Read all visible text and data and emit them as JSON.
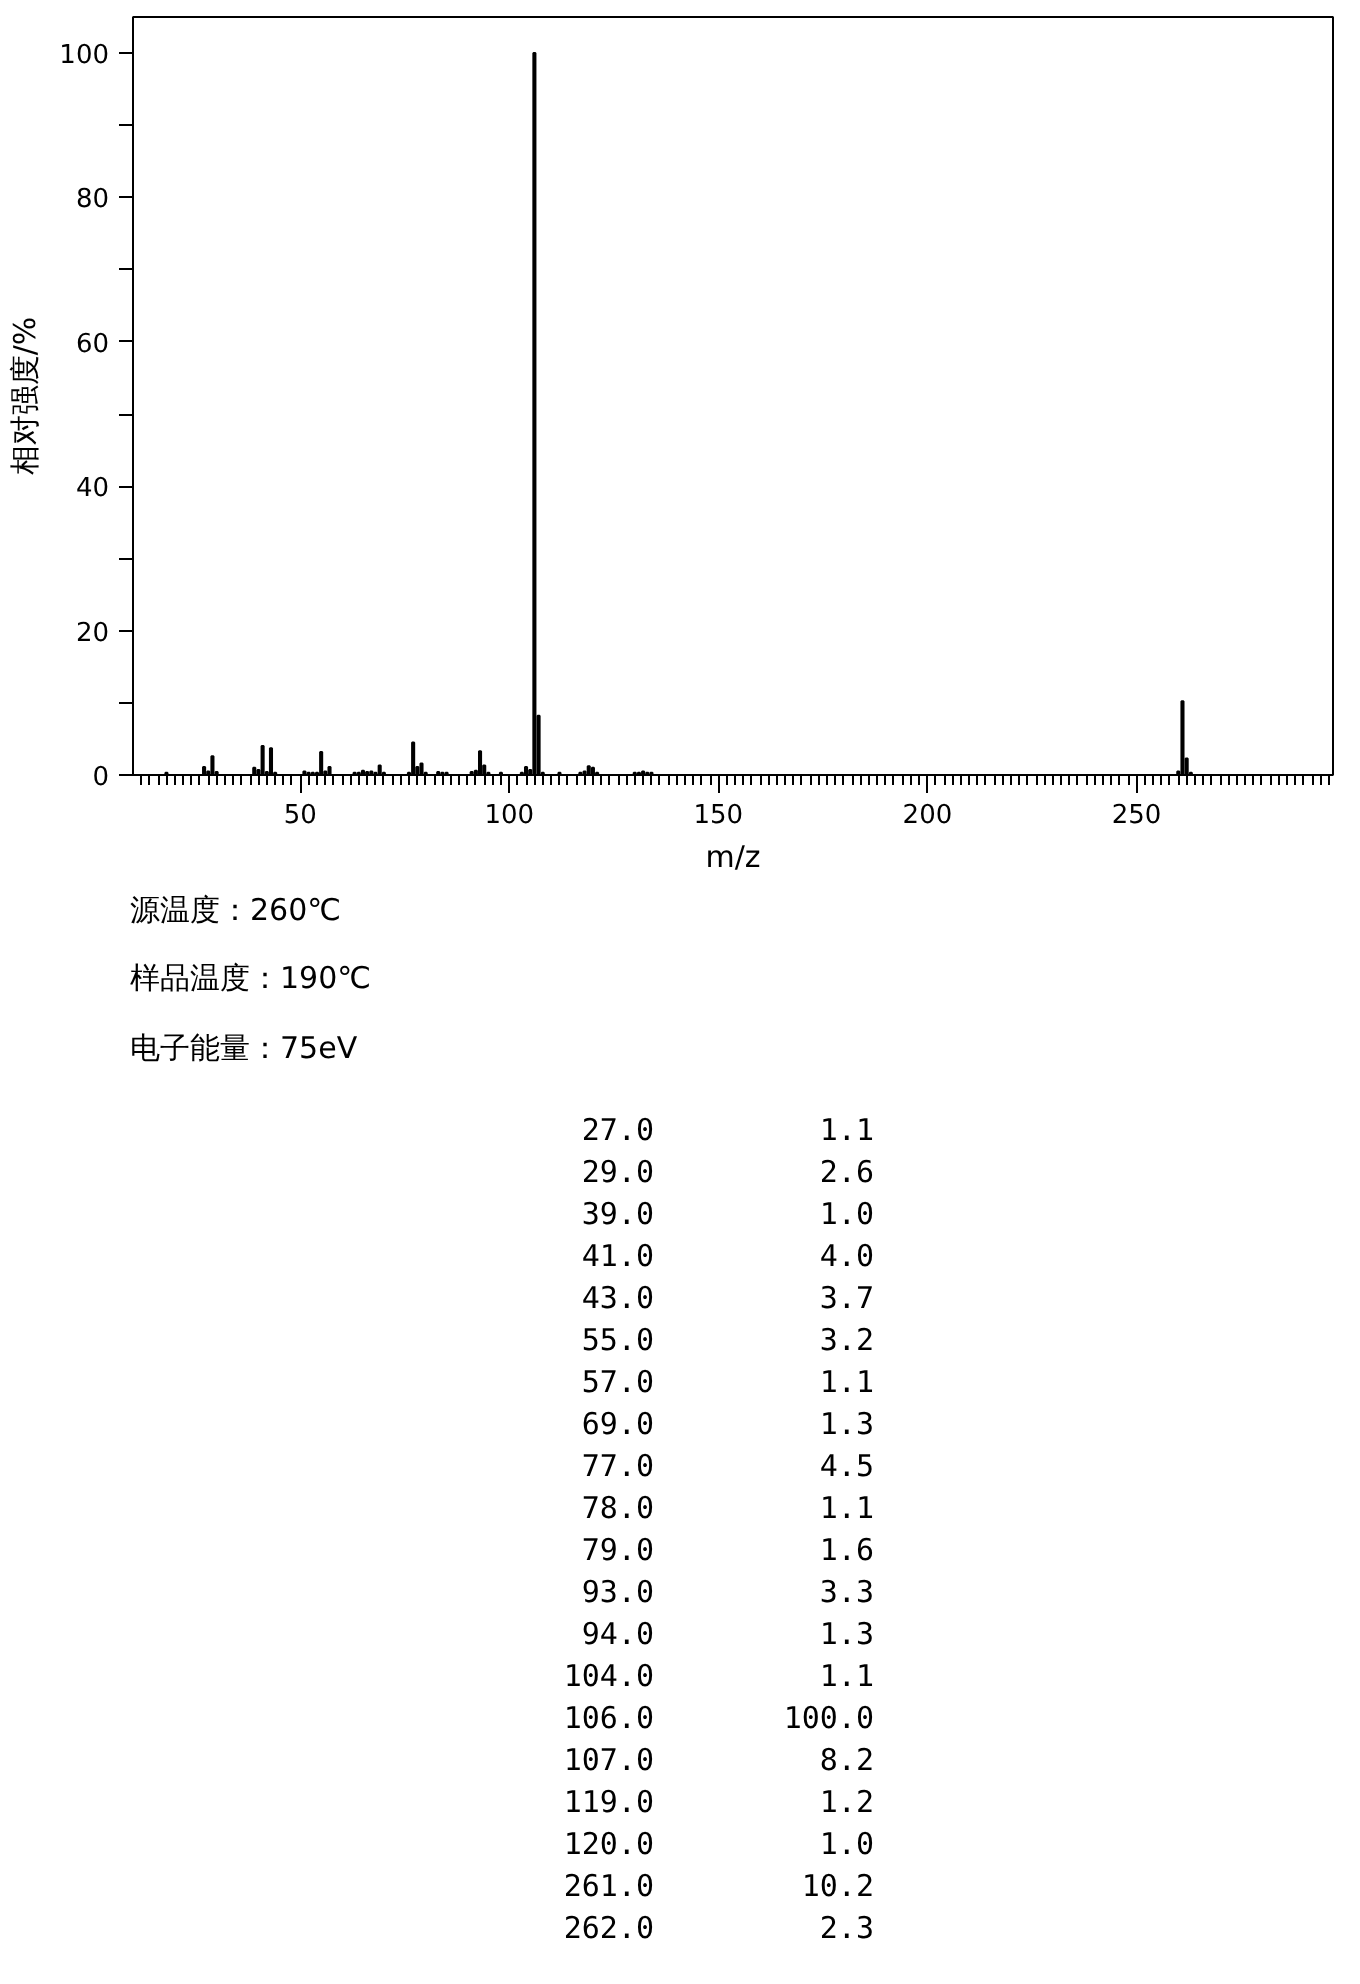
{
  "chart_data": [
    {
      "type": "bar",
      "xlabel": "m/z",
      "ylabel": "相对强度/%",
      "xlim": [
        10,
        297
      ],
      "ylim": [
        0,
        105
      ],
      "xticks": [
        50,
        100,
        150,
        200,
        250
      ],
      "yticks": [
        0,
        {
          "value": 10,
          "label": null
        },
        20,
        {
          "value": 30,
          "label": null
        },
        40,
        {
          "value": 50,
          "label": null
        },
        60,
        {
          "value": 70,
          "label": null
        },
        80,
        {
          "value": 90,
          "label": null
        },
        100
      ],
      "grid": false,
      "series": [
        {
          "color": "#000000",
          "x": [
            18,
            27,
            28,
            29,
            30,
            39,
            40,
            41,
            42,
            43,
            44,
            51,
            52,
            53,
            54,
            55,
            56,
            57,
            63,
            64,
            65,
            66,
            67,
            68,
            69,
            70,
            76,
            77,
            78,
            79,
            80,
            83,
            84,
            85,
            91,
            92,
            93,
            94,
            95,
            98,
            103,
            104,
            105,
            106,
            107,
            108,
            112,
            117,
            118,
            119,
            120,
            121,
            130,
            131,
            132,
            133,
            134,
            260,
            261,
            262,
            263
          ],
          "values": [
            0.3,
            1.1,
            0.5,
            2.6,
            0.4,
            1.0,
            0.7,
            4.0,
            0.4,
            3.7,
            0.3,
            0.5,
            0.3,
            0.3,
            0.3,
            3.2,
            0.5,
            1.1,
            0.3,
            0.3,
            0.6,
            0.4,
            0.5,
            0.3,
            1.3,
            0.3,
            0.3,
            4.5,
            1.1,
            1.6,
            0.3,
            0.4,
            0.3,
            0.3,
            0.4,
            0.6,
            3.3,
            1.3,
            0.3,
            0.3,
            0.3,
            1.1,
            0.7,
            100.0,
            8.2,
            0.3,
            0.3,
            0.3,
            0.5,
            1.2,
            1.0,
            0.3,
            0.3,
            0.3,
            0.5,
            0.3,
            0.3,
            0.5,
            10.2,
            2.3,
            0.3
          ]
        }
      ],
      "annotations": [
        "源温度：260℃",
        "样品温度：190℃",
        "电子能量：75eV"
      ]
    },
    {
      "type": "other",
      "annotations": [
        "27.0",
        "1.1",
        "29.0",
        "2.6",
        "39.0",
        "1.0",
        "41.0",
        "4.0",
        "43.0",
        "3.7",
        "55.0",
        "3.2",
        "57.0",
        "1.1",
        "69.0",
        "1.3",
        "77.0",
        "4.5",
        "78.0",
        "1.1",
        "79.0",
        "1.6",
        "93.0",
        "3.3",
        "94.0",
        "1.3",
        "104.0",
        "1.1",
        "106.0",
        "100.0",
        "107.0",
        "8.2",
        "119.0",
        "1.2",
        "120.0",
        "1.0",
        "261.0",
        "10.2",
        "262.0",
        "2.3"
      ]
    }
  ]
}
